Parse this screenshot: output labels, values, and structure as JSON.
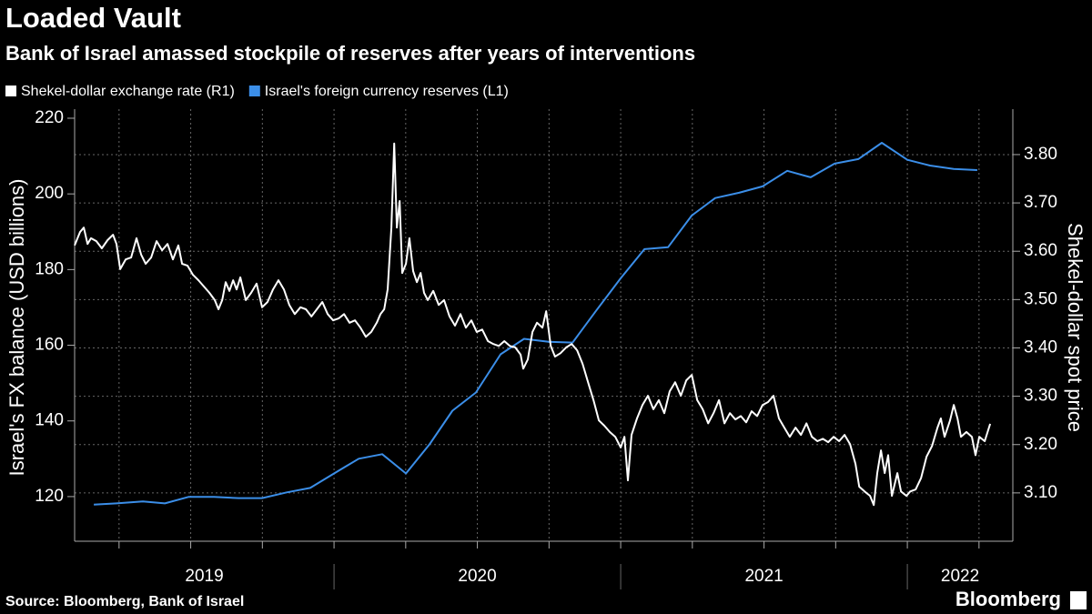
{
  "chart_data": {
    "type": "line",
    "title": "Loaded Vault",
    "subtitle": "Bank of Israel amassed stockpile of reserves after years of interventions",
    "ylabel": "Israel's FX balance (USD billions)",
    "y2label": "Shekel-dollar spot price",
    "source": "Source: Bloomberg, Bank of Israel",
    "brand": "Bloomberg",
    "xlim": [
      2019.095,
      2022.368
    ],
    "xticks": [
      2019,
      2020,
      2021,
      2022
    ],
    "xgrid": [
      2019.25,
      2019.5,
      2019.75,
      2020,
      2020.25,
      2020.5,
      2020.75,
      2021,
      2021.25,
      2021.5,
      2021.75,
      2022,
      2022.25
    ],
    "ylim": [
      108.2,
      222.4
    ],
    "yticks": [
      120,
      140,
      160,
      180,
      200,
      220
    ],
    "y2lim": [
      3.0,
      3.894
    ],
    "y2ticks": [
      {
        "value": 3.1,
        "label": "3.10"
      },
      {
        "value": 3.2,
        "label": "3.20"
      },
      {
        "value": 3.3,
        "label": "3.30"
      },
      {
        "value": 3.4,
        "label": "3.40"
      },
      {
        "value": 3.5,
        "label": "3.50"
      },
      {
        "value": 3.6,
        "label": "3.60"
      },
      {
        "value": 3.7,
        "label": "3.70"
      },
      {
        "value": 3.8,
        "label": "3.80"
      }
    ],
    "grid": "y2",
    "series": [
      {
        "name": "Shekel-dollar exchange rate (R1)",
        "color": "#ffffff",
        "axis": "y2",
        "x": [
          2019.095,
          2019.114,
          2019.127,
          2019.14,
          2019.152,
          2019.171,
          2019.19,
          2019.21,
          2019.229,
          2019.241,
          2019.254,
          2019.273,
          2019.292,
          2019.311,
          2019.327,
          2019.343,
          2019.362,
          2019.381,
          2019.4,
          2019.419,
          2019.438,
          2019.457,
          2019.47,
          2019.489,
          2019.508,
          2019.527,
          2019.546,
          2019.565,
          2019.584,
          2019.597,
          2019.61,
          2019.622,
          2019.635,
          2019.648,
          2019.66,
          2019.673,
          2019.692,
          2019.711,
          2019.73,
          2019.749,
          2019.768,
          2019.787,
          2019.806,
          2019.825,
          2019.844,
          2019.863,
          2019.883,
          2019.902,
          2019.921,
          2019.94,
          2019.959,
          2019.978,
          2019.997,
          2020.016,
          2020.035,
          2020.054,
          2020.073,
          2020.092,
          2020.111,
          2020.13,
          2020.149,
          2020.162,
          2020.175,
          2020.187,
          2020.2,
          2020.21,
          2020.219,
          2020.229,
          2020.238,
          2020.251,
          2020.263,
          2020.276,
          2020.289,
          2020.302,
          2020.314,
          2020.327,
          2020.346,
          2020.365,
          2020.384,
          2020.403,
          2020.422,
          2020.441,
          2020.46,
          2020.479,
          2020.498,
          2020.517,
          2020.537,
          2020.556,
          2020.575,
          2020.594,
          2020.613,
          2020.632,
          2020.651,
          2020.66,
          2020.676,
          2020.692,
          2020.708,
          2020.727,
          2020.74,
          2020.756,
          2020.771,
          2020.79,
          2020.81,
          2020.829,
          2020.848,
          2020.867,
          2020.886,
          2020.905,
          2020.924,
          2020.943,
          2020.962,
          2020.981,
          2021.0,
          2021.013,
          2021.025,
          2021.038,
          2021.057,
          2021.076,
          2021.095,
          2021.114,
          2021.133,
          2021.152,
          2021.171,
          2021.19,
          2021.21,
          2021.229,
          2021.248,
          2021.267,
          2021.286,
          2021.305,
          2021.324,
          2021.343,
          2021.362,
          2021.381,
          2021.4,
          2021.419,
          2021.438,
          2021.457,
          2021.476,
          2021.495,
          2021.514,
          2021.533,
          2021.552,
          2021.571,
          2021.59,
          2021.61,
          2021.629,
          2021.648,
          2021.667,
          2021.686,
          2021.705,
          2021.724,
          2021.743,
          2021.762,
          2021.781,
          2021.8,
          2021.819,
          2021.832,
          2021.851,
          2021.87,
          2021.883,
          2021.895,
          2021.908,
          2021.921,
          2021.933,
          2021.946,
          2021.965,
          2021.978,
          2021.997,
          2022.01,
          2022.029,
          2022.048,
          2022.067,
          2022.086,
          2022.105,
          2022.117,
          2022.13,
          2022.149,
          2022.162,
          2022.175,
          2022.187,
          2022.206,
          2022.225,
          2022.238,
          2022.251,
          2022.27,
          2022.289
        ],
        "values": [
          3.612,
          3.64,
          3.649,
          3.615,
          3.627,
          3.621,
          3.606,
          3.623,
          3.634,
          3.615,
          3.563,
          3.583,
          3.587,
          3.627,
          3.593,
          3.574,
          3.587,
          3.621,
          3.602,
          3.615,
          3.583,
          3.612,
          3.574,
          3.57,
          3.551,
          3.54,
          3.527,
          3.514,
          3.499,
          3.48,
          3.499,
          3.536,
          3.518,
          3.54,
          3.521,
          3.546,
          3.499,
          3.514,
          3.533,
          3.484,
          3.495,
          3.521,
          3.54,
          3.521,
          3.489,
          3.47,
          3.484,
          3.48,
          3.465,
          3.48,
          3.495,
          3.47,
          3.457,
          3.461,
          3.47,
          3.452,
          3.457,
          3.442,
          3.423,
          3.433,
          3.452,
          3.47,
          3.48,
          3.521,
          3.649,
          3.823,
          3.649,
          3.704,
          3.555,
          3.574,
          3.627,
          3.559,
          3.536,
          3.555,
          3.514,
          3.499,
          3.518,
          3.489,
          3.499,
          3.465,
          3.446,
          3.47,
          3.442,
          3.457,
          3.433,
          3.438,
          3.414,
          3.408,
          3.404,
          3.414,
          3.404,
          3.401,
          3.386,
          3.357,
          3.376,
          3.433,
          3.452,
          3.442,
          3.476,
          3.404,
          3.382,
          3.389,
          3.401,
          3.408,
          3.395,
          3.367,
          3.329,
          3.292,
          3.25,
          3.239,
          3.226,
          3.216,
          3.194,
          3.216,
          3.126,
          3.22,
          3.254,
          3.282,
          3.301,
          3.273,
          3.292,
          3.265,
          3.31,
          3.329,
          3.301,
          3.333,
          3.344,
          3.292,
          3.273,
          3.244,
          3.265,
          3.292,
          3.244,
          3.265,
          3.252,
          3.259,
          3.246,
          3.269,
          3.259,
          3.282,
          3.288,
          3.301,
          3.254,
          3.235,
          3.216,
          3.235,
          3.22,
          3.244,
          3.216,
          3.207,
          3.212,
          3.205,
          3.216,
          3.207,
          3.22,
          3.201,
          3.16,
          3.113,
          3.103,
          3.094,
          3.075,
          3.141,
          3.188,
          3.141,
          3.178,
          3.094,
          3.141,
          3.103,
          3.094,
          3.103,
          3.107,
          3.131,
          3.175,
          3.197,
          3.235,
          3.254,
          3.216,
          3.25,
          3.282,
          3.254,
          3.216,
          3.226,
          3.216,
          3.178,
          3.216,
          3.207,
          3.243
        ]
      },
      {
        "name": "Israel's foreign currency reserves (L1)",
        "color": "#3b8ee8",
        "axis": "y",
        "x": [
          2019.162,
          2019.241,
          2019.333,
          2019.41,
          2019.492,
          2019.581,
          2019.667,
          2019.749,
          2019.835,
          2019.917,
          2020.0,
          2020.086,
          2020.168,
          2020.251,
          2020.333,
          2020.413,
          2020.495,
          2020.581,
          2020.663,
          2020.749,
          2020.832,
          2020.914,
          2021.0,
          2021.083,
          2021.165,
          2021.248,
          2021.33,
          2021.413,
          2021.495,
          2021.581,
          2021.663,
          2021.746,
          2021.829,
          2021.911,
          2022.0,
          2022.079,
          2022.162,
          2022.244
        ],
        "values": [
          117.9,
          118.2,
          118.7,
          118.2,
          119.9,
          119.9,
          119.6,
          119.6,
          121.1,
          122.3,
          126.1,
          130.0,
          131.2,
          126.1,
          133.8,
          142.7,
          147.5,
          157.6,
          161.7,
          160.9,
          160.7,
          169.1,
          177.7,
          185.4,
          185.9,
          194.3,
          198.9,
          200.3,
          202.0,
          206.1,
          204.4,
          208.0,
          209.2,
          213.5,
          209.0,
          207.5,
          206.6,
          206.3
        ]
      }
    ]
  }
}
